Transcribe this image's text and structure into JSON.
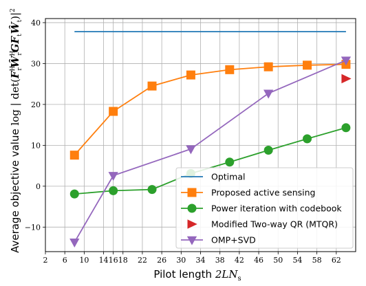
{
  "chart_data": {
    "type": "line",
    "xlabel": "Pilot length 2LN_s",
    "ylabel": "Average objective value log | det(F_r^H Ŵ_r^H G F_t Ŵ_t) |^2",
    "xlim": [
      2,
      66
    ],
    "ylim": [
      -16,
      41
    ],
    "xticks": [
      2,
      6,
      10,
      14,
      16,
      18,
      22,
      26,
      30,
      34,
      38,
      42,
      46,
      50,
      54,
      58,
      62
    ],
    "xtick_labels": [
      "2",
      "6",
      "10",
      "14",
      "16",
      "18",
      "22",
      "26",
      "30",
      "34",
      "38",
      "42",
      "46",
      "50",
      "54",
      "58",
      "62"
    ],
    "yticks": [
      -10,
      0,
      10,
      20,
      30,
      40
    ],
    "ytick_labels": [
      "−10",
      "0",
      "10",
      "20",
      "30",
      "40"
    ],
    "grid": true,
    "legend_position": "lower-right",
    "series": [
      {
        "name": "Optimal",
        "color": "#1f77b4",
        "marker": "none",
        "x": [
          8,
          64
        ],
        "y": [
          37.8,
          37.8
        ]
      },
      {
        "name": "Proposed active sensing",
        "color": "#ff7f0e",
        "marker": "square",
        "x": [
          8,
          16,
          24,
          32,
          40,
          48,
          56,
          64
        ],
        "y": [
          7.6,
          18.3,
          24.5,
          27.2,
          28.5,
          29.2,
          29.6,
          29.8
        ]
      },
      {
        "name": "Power iteration with codebook",
        "color": "#2ca02c",
        "marker": "circle",
        "x": [
          8,
          16,
          24,
          32,
          40,
          48,
          56,
          64
        ],
        "y": [
          -1.9,
          -1.1,
          -0.8,
          3.1,
          5.9,
          8.8,
          11.6,
          14.3
        ]
      },
      {
        "name": "Modified Two-way QR (MTQR)",
        "color": "#d62728",
        "marker": "triangle-right",
        "x": [
          64
        ],
        "y": [
          26.3
        ]
      },
      {
        "name": "OMP+SVD",
        "color": "#9467bd",
        "marker": "triangle-down",
        "x": [
          8,
          16,
          32,
          48,
          64
        ],
        "y": [
          -13.7,
          2.6,
          9.1,
          22.7,
          30.8
        ]
      }
    ]
  }
}
